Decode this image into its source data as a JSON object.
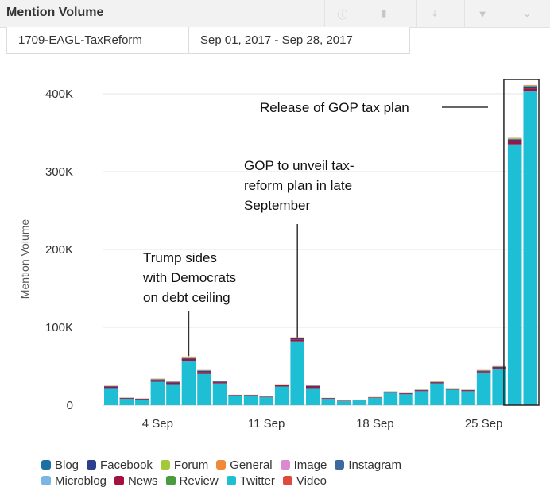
{
  "header": {
    "title": "Mention Volume",
    "tools": [
      {
        "name": "info-icon",
        "glyph": "ⓘ"
      },
      {
        "name": "bar-chart-icon",
        "glyph": "▮"
      },
      {
        "name": "download-icon",
        "glyph": "⤓"
      },
      {
        "name": "filter-icon",
        "glyph": "▼"
      },
      {
        "name": "chevron-down-icon",
        "glyph": "⌄"
      }
    ]
  },
  "tabs": [
    {
      "label": "1709-EAGL-TaxReform"
    },
    {
      "label": "Sep 01, 2017 - Sep 28, 2017"
    }
  ],
  "chart_data": {
    "type": "bar",
    "stacked": true,
    "ylabel": "Mention Volume",
    "ylim": [
      0,
      420000
    ],
    "y_ticks": [
      0,
      100000,
      200000,
      300000,
      400000
    ],
    "y_tick_labels": [
      "0",
      "100K",
      "200K",
      "300K",
      "400K"
    ],
    "x_ticks": [
      {
        "day": 4,
        "label": "4 Sep"
      },
      {
        "day": 11,
        "label": "11 Sep"
      },
      {
        "day": 18,
        "label": "18 Sep"
      },
      {
        "day": 25,
        "label": "25 Sep"
      }
    ],
    "categories": [
      "Sep 01",
      "Sep 02",
      "Sep 03",
      "Sep 04",
      "Sep 05",
      "Sep 06",
      "Sep 07",
      "Sep 08",
      "Sep 09",
      "Sep 10",
      "Sep 11",
      "Sep 12",
      "Sep 13",
      "Sep 14",
      "Sep 15",
      "Sep 16",
      "Sep 17",
      "Sep 18",
      "Sep 19",
      "Sep 20",
      "Sep 21",
      "Sep 22",
      "Sep 23",
      "Sep 24",
      "Sep 25",
      "Sep 26",
      "Sep 27",
      "Sep 28"
    ],
    "series": [
      {
        "name": "Twitter",
        "color": "#1ebfd4",
        "values": [
          22000,
          8000,
          7000,
          30000,
          27000,
          57000,
          40000,
          28000,
          12000,
          12000,
          10000,
          24000,
          82000,
          22000,
          8000,
          5000,
          6000,
          9000,
          16000,
          14000,
          18000,
          28000,
          20000,
          18000,
          42000,
          47000,
          335000,
          403000
        ]
      },
      {
        "name": "News",
        "color": "#a3123f",
        "values": [
          1500,
          800,
          700,
          2000,
          1800,
          2500,
          2500,
          1500,
          700,
          700,
          600,
          1500,
          2500,
          2000,
          700,
          500,
          500,
          600,
          900,
          800,
          1000,
          1200,
          1000,
          1000,
          1500,
          1500,
          4000,
          4000
        ]
      },
      {
        "name": "Facebook",
        "color": "#2c3e8c",
        "values": [
          800,
          400,
          400,
          1000,
          800,
          1500,
          1500,
          700,
          300,
          300,
          300,
          800,
          1200,
          800,
          300,
          200,
          200,
          300,
          400,
          400,
          500,
          500,
          400,
          400,
          700,
          700,
          2000,
          2000
        ]
      },
      {
        "name": "Blog",
        "color": "#1a6fa3",
        "values": [
          300,
          200,
          200,
          400,
          400,
          500,
          500,
          300,
          200,
          200,
          200,
          300,
          500,
          300,
          200,
          100,
          100,
          200,
          200,
          200,
          200,
          200,
          200,
          200,
          300,
          300,
          800,
          800
        ]
      },
      {
        "name": "Forum",
        "color": "#a5c73a",
        "values": [
          200,
          200,
          200,
          400,
          300,
          400,
          300,
          200,
          100,
          100,
          100,
          200,
          400,
          200,
          100,
          100,
          100,
          200,
          200,
          100,
          200,
          200,
          200,
          200,
          300,
          300,
          700,
          700
        ]
      },
      {
        "name": "General",
        "color": "#ef8a3a",
        "values": [
          300,
          200,
          200,
          400,
          300,
          500,
          400,
          300,
          100,
          100,
          100,
          200,
          500,
          200,
          100,
          100,
          100,
          200,
          200,
          200,
          200,
          300,
          200,
          200,
          400,
          400,
          800,
          800
        ]
      }
    ],
    "legend": {
      "placement": "bottom",
      "rows": [
        [
          {
            "name": "Blog",
            "color": "#1a6fa3"
          },
          {
            "name": "Facebook",
            "color": "#2c3e8c"
          },
          {
            "name": "Forum",
            "color": "#a5c73a"
          },
          {
            "name": "General",
            "color": "#ef8a3a"
          },
          {
            "name": "Image",
            "color": "#d98ad0"
          },
          {
            "name": "Instagram",
            "color": "#3d6a9e"
          }
        ],
        [
          {
            "name": "Microblog",
            "color": "#7ab6e4"
          },
          {
            "name": "News",
            "color": "#a3123f"
          },
          {
            "name": "Review",
            "color": "#4a9a3f"
          },
          {
            "name": "Twitter",
            "color": "#1ebfd4"
          },
          {
            "name": "Video",
            "color": "#e04a3a"
          }
        ]
      ]
    },
    "annotations": [
      {
        "lines": [
          "Trump sides",
          "with Democrats",
          "on debt ceiling"
        ],
        "target_day": 6,
        "target_value": 63000
      },
      {
        "lines": [
          "GOP to unveil tax-",
          "reform plan in late",
          "September"
        ],
        "target_day": 13,
        "target_value": 87000
      },
      {
        "lines": [
          "Release of GOP tax plan"
        ],
        "target_day": 27,
        "target_value": 380000
      }
    ],
    "highlight_days": [
      27,
      28
    ]
  }
}
